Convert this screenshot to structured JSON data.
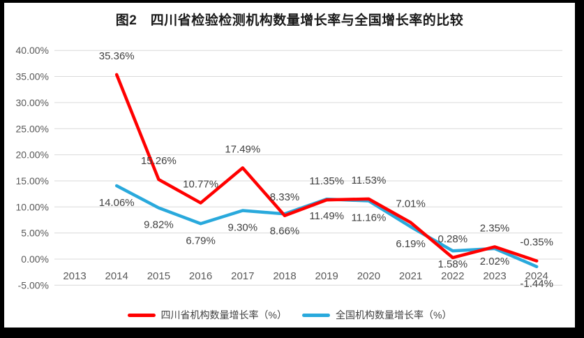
{
  "title": "图2　四川省检验检测机构数量增长率与全国增长率的比较",
  "chart_data": {
    "type": "line",
    "title": "图2　四川省检验检测机构数量增长率与全国增长率的比较",
    "categories": [
      "2013",
      "2014",
      "2015",
      "2016",
      "2017",
      "2018",
      "2019",
      "2020",
      "2021",
      "2022",
      "2023",
      "2024"
    ],
    "series": [
      {
        "id": "sichuan",
        "name": "四川省机构数量增长率（%）",
        "color": "#FF0000",
        "values": [
          null,
          35.36,
          15.26,
          10.77,
          17.49,
          8.33,
          11.35,
          11.53,
          7.01,
          0.28,
          2.35,
          -0.35
        ],
        "labels": [
          null,
          "35.36%",
          "15.26%",
          "10.77%",
          "17.49%",
          "8.33%",
          "11.35%",
          "11.53%",
          "7.01%",
          "0.28%",
          "2.35%",
          "-0.35%"
        ],
        "label_position": "above"
      },
      {
        "id": "national",
        "name": "全国机构数量增长率（%）",
        "color": "#29A9DC",
        "values": [
          null,
          14.06,
          9.82,
          6.79,
          9.3,
          8.66,
          11.49,
          11.16,
          6.19,
          1.58,
          2.02,
          -1.44
        ],
        "labels": [
          null,
          "14.06%",
          "9.82%",
          "6.79%",
          "9.30%",
          "8.66%",
          "11.49%",
          "11.16%",
          "6.19%",
          "1.58%",
          "2.02%",
          "-1.44%"
        ],
        "label_position": "below"
      }
    ],
    "y_axis": {
      "min": -5,
      "max": 40,
      "step": 5,
      "tick_values": [
        40,
        35,
        30,
        25,
        20,
        15,
        10,
        5,
        0,
        -5
      ],
      "tick_labels": [
        "40.00%",
        "35.00%",
        "30.00%",
        "25.00%",
        "20.00%",
        "15.00%",
        "10.00%",
        "5.00%",
        "0.00%",
        "-5.00%"
      ]
    },
    "gridlines": true,
    "legend_position": "bottom",
    "data_labels": true,
    "colors": {
      "gridline": "#D9D9D9",
      "axis_text": "#595959",
      "data_label_text": "#3F3F3F",
      "page_background": "#FFFFFF",
      "frame_background": "#000000"
    }
  }
}
